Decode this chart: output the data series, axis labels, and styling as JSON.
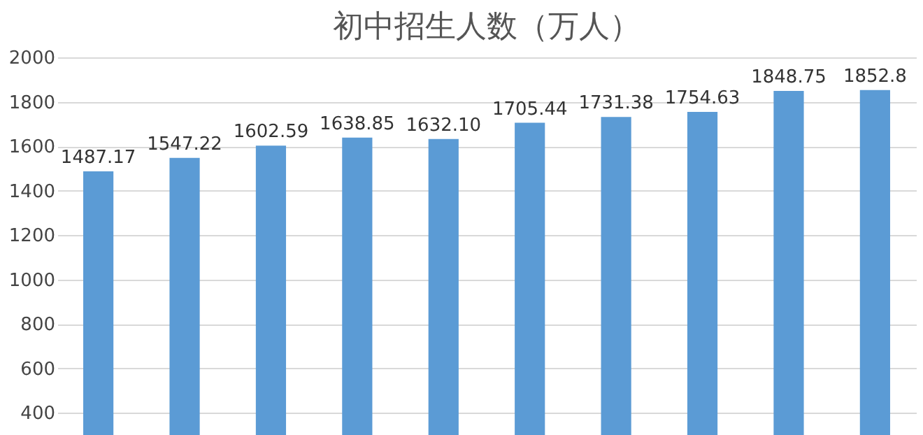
{
  "chart_data": {
    "type": "bar",
    "title": "初中招生人数（万人）",
    "categories": [
      null,
      null,
      null,
      null,
      null,
      null,
      null,
      null,
      null,
      null
    ],
    "values": [
      1487.17,
      1547.22,
      1602.59,
      1638.85,
      1632.1,
      1705.44,
      1731.38,
      1754.63,
      1848.75,
      1852.8
    ],
    "value_labels": [
      "1487.17",
      "1547.22",
      "1602.59",
      "1638.85",
      "1632.10",
      "1705.44",
      "1731.38",
      "1754.63",
      "1848.75",
      "1852.8"
    ],
    "color": "#5b9bd5",
    "ylim": [
      300,
      2000
    ],
    "yticks": [
      400,
      600,
      800,
      1000,
      1200,
      1400,
      1600,
      1800,
      2000
    ],
    "grid": "y",
    "tick_labels": "y"
  }
}
